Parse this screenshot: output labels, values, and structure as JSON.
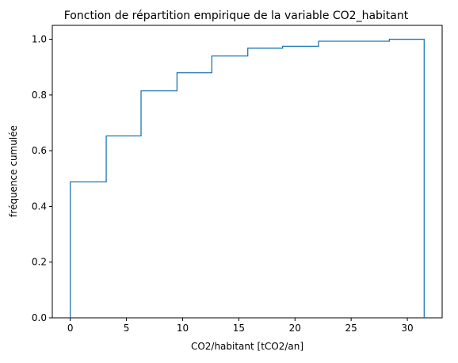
{
  "chart_data": {
    "type": "line",
    "subtype": "ecdf-step",
    "title": "Fonction de répartition empirique de la variable CO2_habitant",
    "xlabel": "CO2/habitant [tCO2/an]",
    "ylabel": "fréquence cumulée",
    "xlim": [
      -1.6,
      33.1
    ],
    "ylim": [
      0.0,
      1.05
    ],
    "xticks": [
      0,
      5,
      10,
      15,
      20,
      25,
      30
    ],
    "xtick_labels": [
      "0",
      "5",
      "10",
      "15",
      "20",
      "25",
      "30"
    ],
    "yticks": [
      0.0,
      0.2,
      0.4,
      0.6,
      0.8,
      1.0
    ],
    "ytick_labels": [
      "0.0",
      "0.2",
      "0.4",
      "0.6",
      "0.8",
      "1.0"
    ],
    "grid": false,
    "series": [
      {
        "color": "#1f77b4",
        "steps": [
          {
            "x0": 0.0,
            "x1": 3.2,
            "y": 0.488
          },
          {
            "x0": 3.2,
            "x1": 6.3,
            "y": 0.653
          },
          {
            "x0": 6.3,
            "x1": 9.5,
            "y": 0.815
          },
          {
            "x0": 9.5,
            "x1": 12.6,
            "y": 0.88
          },
          {
            "x0": 12.6,
            "x1": 15.8,
            "y": 0.94
          },
          {
            "x0": 15.8,
            "x1": 18.9,
            "y": 0.968
          },
          {
            "x0": 18.9,
            "x1": 22.1,
            "y": 0.975
          },
          {
            "x0": 22.1,
            "x1": 28.4,
            "y": 0.993
          },
          {
            "x0": 28.4,
            "x1": 31.5,
            "y": 1.0
          }
        ],
        "start_x": 0.0,
        "end_x": 31.5
      }
    ]
  }
}
